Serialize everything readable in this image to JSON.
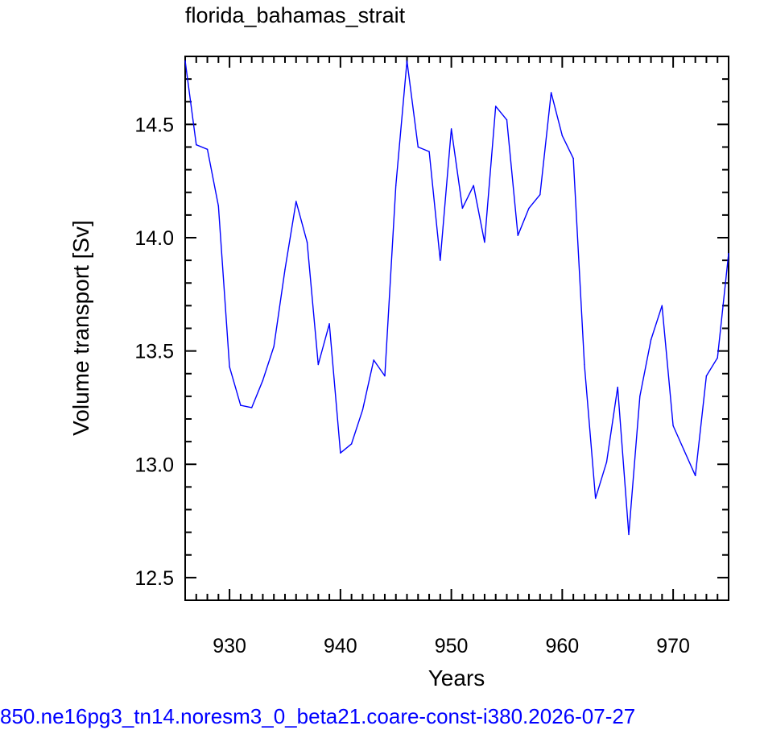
{
  "chart_data": {
    "type": "line",
    "title": "florida_bahamas_strait",
    "xlabel": "Years",
    "ylabel": "Volume transport [Sv]",
    "xlim": [
      926,
      975
    ],
    "ylim": [
      12.4,
      14.8
    ],
    "xticks": [
      930,
      940,
      950,
      960,
      970
    ],
    "xtick_labels": [
      "930",
      "940",
      "950",
      "960",
      "970"
    ],
    "yticks": [
      12.5,
      13.0,
      13.5,
      14.0,
      14.5
    ],
    "ytick_labels": [
      "12.5",
      "13.0",
      "13.5",
      "14.0",
      "14.5"
    ],
    "grid": false,
    "line_color": "#0000ff",
    "series": [
      {
        "x": [
          926,
          927,
          928,
          929,
          930,
          931,
          932,
          933,
          934,
          935,
          936,
          937,
          938,
          939,
          940,
          941,
          942,
          943,
          944,
          945,
          946,
          947,
          948,
          949,
          950,
          951,
          952,
          953,
          954,
          955,
          956,
          957,
          958,
          959,
          960,
          961,
          962,
          963,
          964,
          965,
          966,
          967,
          968,
          969,
          970,
          971,
          972,
          973,
          974,
          975
        ],
        "values": [
          14.78,
          14.41,
          14.39,
          14.14,
          13.43,
          13.26,
          13.25,
          13.37,
          13.52,
          13.86,
          14.16,
          13.98,
          13.44,
          13.62,
          13.05,
          13.09,
          13.24,
          13.46,
          13.39,
          14.23,
          14.78,
          14.4,
          14.38,
          13.9,
          14.48,
          14.13,
          14.23,
          13.98,
          14.58,
          14.52,
          14.01,
          14.13,
          14.19,
          14.64,
          14.45,
          14.35,
          13.44,
          12.85,
          13.01,
          13.34,
          12.69,
          13.3,
          13.55,
          13.7,
          13.17,
          13.06,
          12.95,
          13.39,
          13.47,
          13.93
        ]
      }
    ]
  },
  "footer": {
    "text": "850.ne16pg3_tn14.noresm3_0_beta21.coare-const-i380.2026-07-27"
  }
}
